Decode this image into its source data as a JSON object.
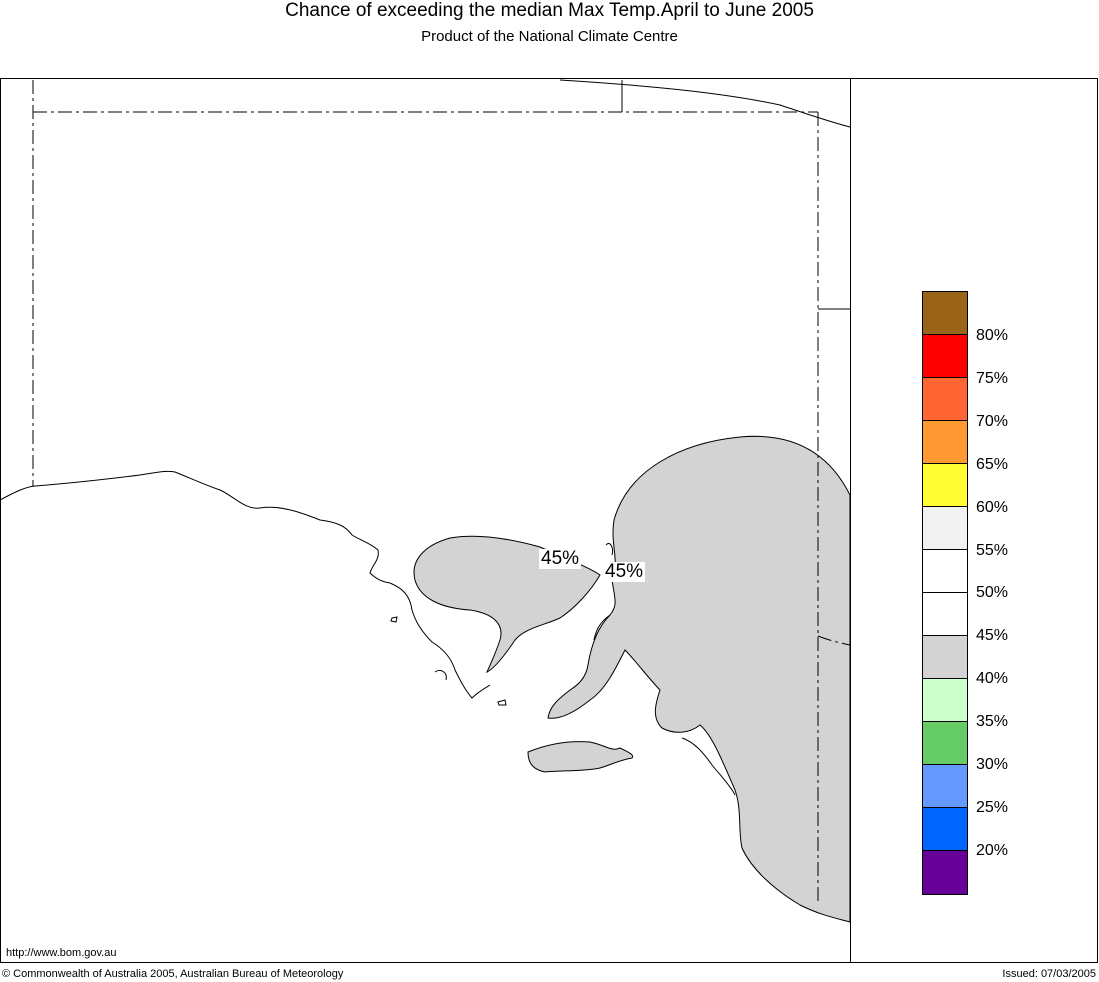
{
  "header": {
    "title": "Chance of exceeding the median Max Temp.April to June 2005",
    "subtitle": "Product of the National Climate Centre"
  },
  "map": {
    "labels": [
      "45%",
      "45%"
    ],
    "colors": {
      "probability_area": "#d3d3d3",
      "coast": "#000000",
      "border": "#000000"
    }
  },
  "legend": {
    "swatches": [
      {
        "color": "#996418",
        "label": "80%"
      },
      {
        "color": "#ff0000",
        "label": "75%"
      },
      {
        "color": "#ff6633",
        "label": "70%"
      },
      {
        "color": "#ff9933",
        "label": "65%"
      },
      {
        "color": "#ffff33",
        "label": "60%"
      },
      {
        "color": "#f2f2f2",
        "label": "55%"
      },
      {
        "color": "#ffffff",
        "label": "50%"
      },
      {
        "color": "#ffffff",
        "label": "45%"
      },
      {
        "color": "#d3d3d3",
        "label": "40%"
      },
      {
        "color": "#ccffcc",
        "label": "35%"
      },
      {
        "color": "#66cc66",
        "label": "30%"
      },
      {
        "color": "#6699ff",
        "label": "25%"
      },
      {
        "color": "#0066ff",
        "label": "20%"
      },
      {
        "color": "#660099",
        "label": ""
      }
    ]
  },
  "footer": {
    "url": "http://www.bom.gov.au",
    "copyright": "© Commonwealth of Australia 2005, Australian Bureau of Meteorology",
    "issued": "Issued: 07/03/2005"
  }
}
